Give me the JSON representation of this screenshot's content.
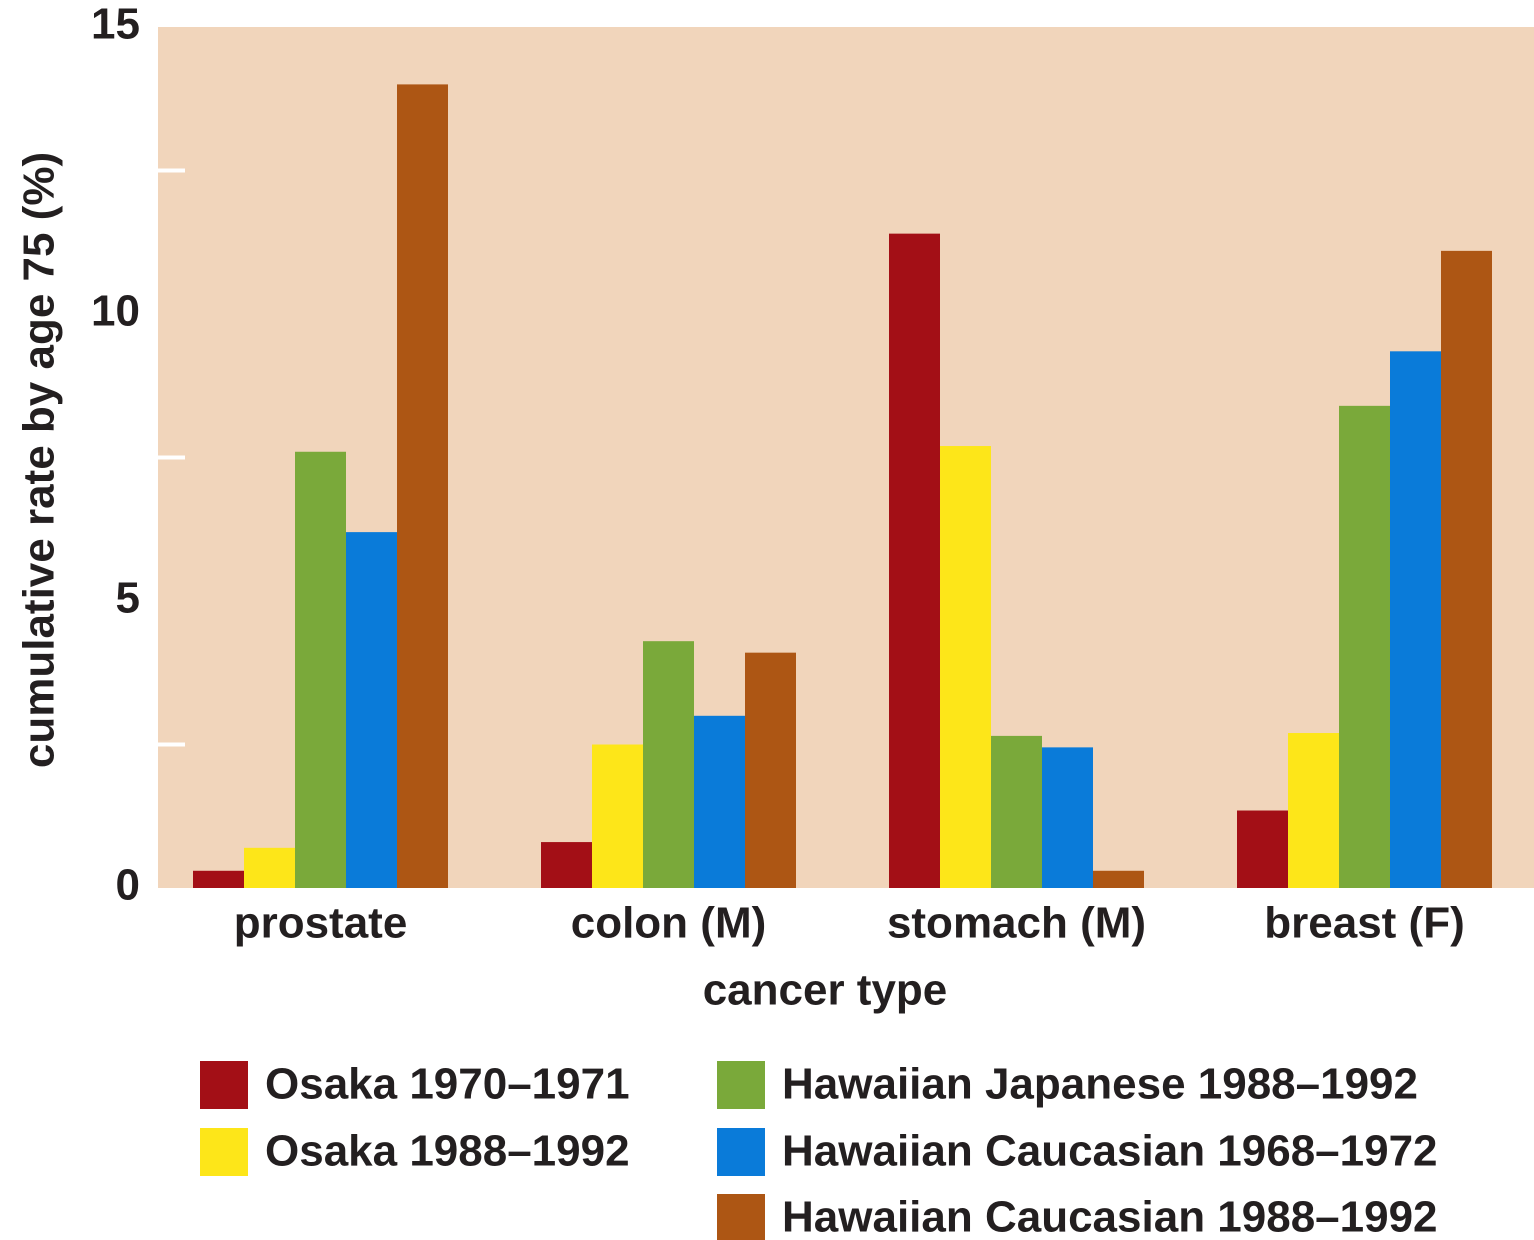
{
  "chart_data": {
    "type": "bar",
    "x_label": "cancer type",
    "y_label": "cumulative rate by age 75 (%)",
    "categories": [
      "prostate",
      "colon (M)",
      "stomach (M)",
      "breast (F)"
    ],
    "series": [
      {
        "name": "Osaka 1970–1971",
        "color": "#a30f16",
        "values": [
          0.3,
          0.8,
          11.4,
          1.35
        ]
      },
      {
        "name": "Osaka 1988–1992",
        "color": "#fde619",
        "values": [
          0.7,
          2.5,
          7.7,
          2.7
        ]
      },
      {
        "name": "Hawaiian Japanese 1988–1992",
        "color": "#7aa93a",
        "values": [
          7.6,
          4.3,
          2.65,
          8.4
        ]
      },
      {
        "name": "Hawaiian Caucasian 1968–1972",
        "color": "#0a7bd9",
        "values": [
          6.2,
          3.0,
          2.45,
          9.35
        ]
      },
      {
        "name": "Hawaiian Caucasian 1988–1992",
        "color": "#ad5614",
        "values": [
          14.0,
          4.1,
          0.3,
          11.1
        ]
      }
    ],
    "ylim": [
      0,
      15
    ],
    "yticks": [
      0,
      5,
      10,
      15
    ],
    "minor_yticks": [
      2.5,
      7.5,
      12.5
    ],
    "plot_background": "#f1d5bb",
    "legend": "bottom"
  }
}
